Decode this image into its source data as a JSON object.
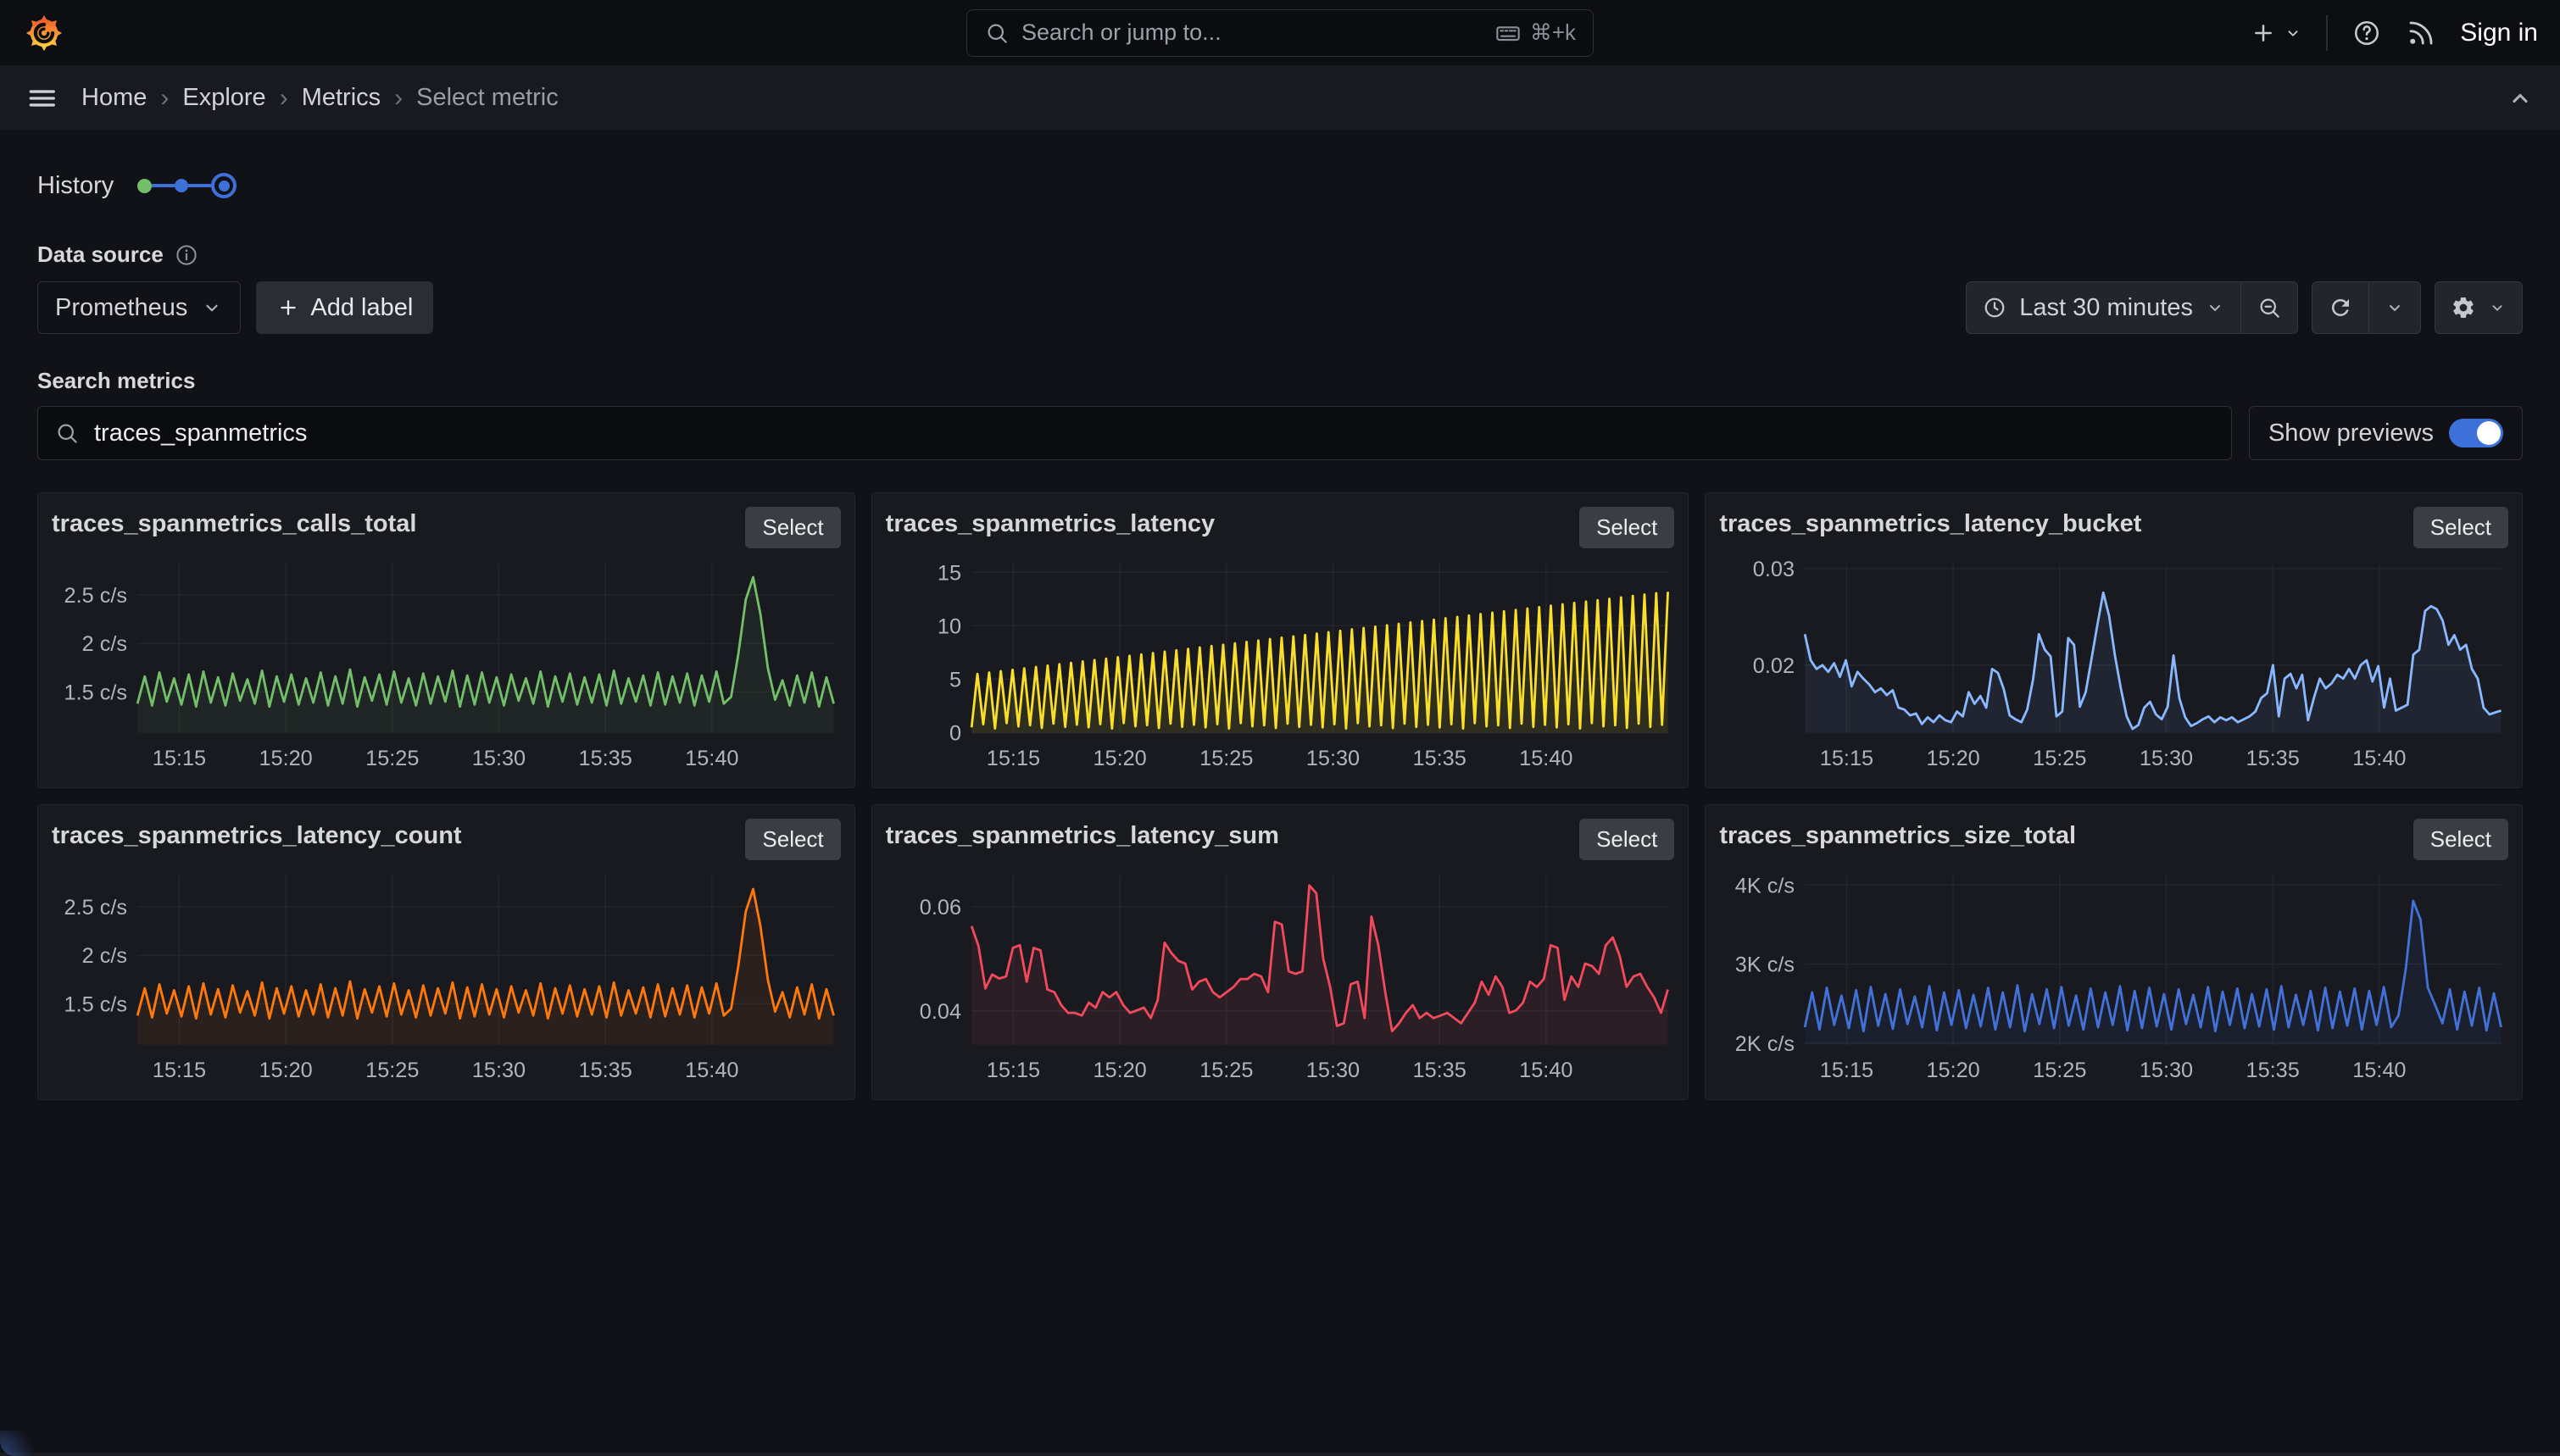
{
  "header": {
    "search": {
      "placeholder": "Search or jump to...",
      "shortcut": "⌘+k"
    },
    "sign_in": "Sign in"
  },
  "breadcrumb": {
    "separator": "›",
    "items": [
      "Home",
      "Explore",
      "Metrics",
      "Select metric"
    ]
  },
  "history": {
    "label": "History"
  },
  "datasource": {
    "label": "Data source",
    "value": "Prometheus",
    "add_label": "Add label"
  },
  "toolbar": {
    "time_label": "Last 30 minutes"
  },
  "search_metrics": {
    "label": "Search metrics",
    "value": "traces_spanmetrics",
    "show_previews": "Show previews"
  },
  "colors": {
    "accent": "#3d71d9",
    "toggle_on": "#3d71d9"
  },
  "time_axis": {
    "labels": [
      "15:15",
      "15:20",
      "15:25",
      "15:30",
      "15:35",
      "15:40"
    ],
    "fractions": [
      0.06,
      0.213,
      0.366,
      0.519,
      0.672,
      0.825
    ]
  },
  "panels": [
    {
      "title": "traces_spanmetrics_calls_total",
      "select_label": "Select",
      "chart": {
        "type": "line",
        "color": "#73bf69",
        "fill_opacity": 0.08,
        "ylim": [
          1.08,
          2.82
        ],
        "yticks": [
          {
            "v": 2.5,
            "label": "2.5 c/s"
          },
          {
            "v": 2.0,
            "label": "2 c/s"
          },
          {
            "v": 1.5,
            "label": "1.5 c/s"
          }
        ],
        "values": [
          1.38,
          1.66,
          1.36,
          1.7,
          1.4,
          1.64,
          1.37,
          1.68,
          1.35,
          1.71,
          1.39,
          1.65,
          1.36,
          1.69,
          1.41,
          1.63,
          1.38,
          1.72,
          1.35,
          1.66,
          1.4,
          1.68,
          1.37,
          1.64,
          1.39,
          1.7,
          1.36,
          1.66,
          1.38,
          1.73,
          1.35,
          1.65,
          1.41,
          1.68,
          1.37,
          1.71,
          1.39,
          1.64,
          1.36,
          1.69,
          1.38,
          1.66,
          1.4,
          1.72,
          1.35,
          1.67,
          1.37,
          1.7,
          1.39,
          1.65,
          1.36,
          1.68,
          1.41,
          1.64,
          1.38,
          1.71,
          1.35,
          1.66,
          1.4,
          1.69,
          1.37,
          1.65,
          1.39,
          1.68,
          1.36,
          1.72,
          1.38,
          1.64,
          1.4,
          1.67,
          1.36,
          1.7,
          1.37,
          1.66,
          1.39,
          1.69,
          1.36,
          1.67,
          1.4,
          1.71,
          1.38,
          1.45,
          1.9,
          2.45,
          2.68,
          2.3,
          1.75,
          1.42,
          1.62,
          1.36,
          1.67,
          1.39,
          1.7,
          1.35,
          1.65,
          1.38
        ]
      }
    },
    {
      "title": "traces_spanmetrics_latency",
      "select_label": "Select",
      "chart": {
        "type": "line",
        "color": "#fade2a",
        "fill_opacity": 0.1,
        "ylim": [
          0,
          15.8
        ],
        "yticks": [
          {
            "v": 15,
            "label": "15"
          },
          {
            "v": 10,
            "label": "10"
          },
          {
            "v": 5,
            "label": "5"
          },
          {
            "v": 0,
            "label": "0"
          }
        ],
        "values": [
          0.5,
          5.5,
          0.8,
          5.63,
          0.4,
          5.76,
          0.9,
          5.89,
          0.6,
          6.02,
          0.7,
          6.15,
          0.45,
          6.28,
          0.85,
          6.41,
          0.55,
          6.54,
          0.75,
          6.67,
          0.5,
          6.8,
          0.8,
          6.93,
          0.4,
          7.06,
          0.9,
          7.19,
          0.6,
          7.32,
          0.7,
          7.45,
          0.45,
          7.58,
          0.85,
          7.71,
          0.55,
          7.84,
          0.75,
          7.97,
          0.5,
          8.1,
          0.8,
          8.23,
          0.4,
          8.36,
          0.9,
          8.49,
          0.6,
          8.62,
          0.7,
          8.75,
          0.45,
          8.88,
          0.85,
          9.01,
          0.55,
          9.14,
          0.75,
          9.27,
          0.5,
          9.4,
          0.8,
          9.53,
          0.4,
          9.66,
          0.9,
          9.79,
          0.6,
          9.92,
          0.7,
          10.05,
          0.45,
          10.18,
          0.85,
          10.31,
          0.55,
          10.44,
          0.75,
          10.57,
          0.5,
          10.7,
          0.8,
          10.83,
          0.4,
          10.96,
          0.9,
          11.09,
          0.6,
          11.22,
          0.7,
          11.35,
          0.45,
          11.48,
          0.85,
          11.61,
          0.55,
          11.74,
          0.75,
          11.87,
          0.5,
          12.0,
          0.8,
          12.13,
          0.4,
          12.26,
          0.9,
          12.39,
          0.6,
          12.52,
          0.7,
          12.65,
          0.45,
          12.78,
          0.85,
          12.91,
          0.55,
          13.04,
          0.75,
          13.17
        ]
      }
    },
    {
      "title": "traces_spanmetrics_latency_bucket",
      "select_label": "Select",
      "chart": {
        "type": "line",
        "color": "#8ab8ff",
        "fill_opacity": 0.08,
        "ylim": [
          0.013,
          0.0305
        ],
        "yticks": [
          {
            "v": 0.03,
            "label": "0.03"
          },
          {
            "v": 0.02,
            "label": "0.02"
          }
        ],
        "values": [
          0.0232,
          0.0205,
          0.0196,
          0.02,
          0.0193,
          0.0202,
          0.0188,
          0.0205,
          0.0178,
          0.0193,
          0.0186,
          0.018,
          0.0172,
          0.0176,
          0.0169,
          0.0174,
          0.0156,
          0.0154,
          0.0148,
          0.015,
          0.0139,
          0.0146,
          0.0141,
          0.0148,
          0.0143,
          0.0141,
          0.0152,
          0.0147,
          0.0172,
          0.016,
          0.0168,
          0.0156,
          0.0196,
          0.0192,
          0.0175,
          0.0148,
          0.0144,
          0.0141,
          0.0154,
          0.0185,
          0.0232,
          0.0216,
          0.0209,
          0.0147,
          0.0152,
          0.0228,
          0.0221,
          0.0157,
          0.0172,
          0.0207,
          0.0242,
          0.0275,
          0.0251,
          0.021,
          0.0176,
          0.0147,
          0.0134,
          0.0138,
          0.0156,
          0.0162,
          0.0149,
          0.0144,
          0.0157,
          0.021,
          0.0166,
          0.0146,
          0.0137,
          0.014,
          0.0144,
          0.0147,
          0.0141,
          0.0146,
          0.0143,
          0.0146,
          0.0141,
          0.0144,
          0.0147,
          0.0152,
          0.0166,
          0.0171,
          0.02,
          0.0147,
          0.0186,
          0.0191,
          0.0176,
          0.019,
          0.0143,
          0.0166,
          0.0186,
          0.0176,
          0.0181,
          0.019,
          0.0186,
          0.0196,
          0.0186,
          0.02,
          0.0205,
          0.0183,
          0.0199,
          0.0156,
          0.0186,
          0.0153,
          0.0156,
          0.0159,
          0.0211,
          0.0216,
          0.0256,
          0.0261,
          0.0258,
          0.0246,
          0.0221,
          0.0231,
          0.0216,
          0.0221,
          0.0196,
          0.0186,
          0.0156,
          0.0149,
          0.0151,
          0.0153
        ]
      }
    },
    {
      "title": "traces_spanmetrics_latency_count",
      "select_label": "Select",
      "chart": {
        "type": "line",
        "color": "#ff780a",
        "fill_opacity": 0.08,
        "ylim": [
          1.08,
          2.82
        ],
        "yticks": [
          {
            "v": 2.5,
            "label": "2.5 c/s"
          },
          {
            "v": 2.0,
            "label": "2 c/s"
          },
          {
            "v": 1.5,
            "label": "1.5 c/s"
          }
        ],
        "values": [
          1.38,
          1.66,
          1.36,
          1.7,
          1.4,
          1.64,
          1.37,
          1.68,
          1.35,
          1.71,
          1.39,
          1.65,
          1.36,
          1.69,
          1.41,
          1.63,
          1.38,
          1.72,
          1.35,
          1.66,
          1.4,
          1.68,
          1.37,
          1.64,
          1.39,
          1.7,
          1.36,
          1.66,
          1.38,
          1.73,
          1.35,
          1.65,
          1.41,
          1.68,
          1.37,
          1.71,
          1.39,
          1.64,
          1.36,
          1.69,
          1.38,
          1.66,
          1.4,
          1.72,
          1.35,
          1.67,
          1.37,
          1.7,
          1.39,
          1.65,
          1.36,
          1.68,
          1.41,
          1.64,
          1.38,
          1.71,
          1.35,
          1.66,
          1.4,
          1.69,
          1.37,
          1.65,
          1.39,
          1.68,
          1.36,
          1.72,
          1.38,
          1.64,
          1.4,
          1.67,
          1.36,
          1.7,
          1.37,
          1.66,
          1.39,
          1.69,
          1.36,
          1.67,
          1.4,
          1.71,
          1.38,
          1.45,
          1.9,
          2.45,
          2.68,
          2.3,
          1.75,
          1.42,
          1.62,
          1.36,
          1.67,
          1.39,
          1.7,
          1.35,
          1.65,
          1.38
        ]
      }
    },
    {
      "title": "traces_spanmetrics_latency_sum",
      "select_label": "Select",
      "chart": {
        "type": "line",
        "color": "#f2495c",
        "fill_opacity": 0.09,
        "ylim": [
          0.0335,
          0.066
        ],
        "yticks": [
          {
            "v": 0.06,
            "label": "0.06"
          },
          {
            "v": 0.04,
            "label": "0.04"
          }
        ],
        "values": [
          0.0563,
          0.0525,
          0.0443,
          0.047,
          0.0462,
          0.0466,
          0.0521,
          0.0526,
          0.0456,
          0.0521,
          0.0516,
          0.0441,
          0.0436,
          0.0411,
          0.0396,
          0.0396,
          0.0391,
          0.0416,
          0.0406,
          0.0436,
          0.0426,
          0.0436,
          0.0411,
          0.0396,
          0.0401,
          0.0406,
          0.0386,
          0.0421,
          0.0531,
          0.0511,
          0.0496,
          0.0491,
          0.0441,
          0.0456,
          0.0461,
          0.0436,
          0.0426,
          0.0436,
          0.0446,
          0.0461,
          0.0461,
          0.0471,
          0.0466,
          0.0436,
          0.0571,
          0.0566,
          0.0476,
          0.0471,
          0.0476,
          0.0641,
          0.0626,
          0.0501,
          0.0446,
          0.0371,
          0.0376,
          0.0451,
          0.0456,
          0.0386,
          0.0581,
          0.0526,
          0.0436,
          0.0361,
          0.0376,
          0.0396,
          0.0411,
          0.0386,
          0.0396,
          0.0386,
          0.0391,
          0.0396,
          0.0386,
          0.0376,
          0.0396,
          0.0416,
          0.0456,
          0.0431,
          0.0466,
          0.0446,
          0.0396,
          0.0401,
          0.0416,
          0.0456,
          0.0446,
          0.0461,
          0.0526,
          0.0521,
          0.0421,
          0.0466,
          0.0446,
          0.0491,
          0.0486,
          0.0471,
          0.0526,
          0.0541,
          0.0506,
          0.0446,
          0.0466,
          0.0471,
          0.0446,
          0.0426,
          0.0396,
          0.0441
        ]
      }
    },
    {
      "title": "traces_spanmetrics_size_total",
      "select_label": "Select",
      "chart": {
        "type": "line",
        "color": "#4272d9",
        "fill_opacity": 0.08,
        "ylim": [
          1980,
          4120
        ],
        "yticks": [
          {
            "v": 4000,
            "label": "4K c/s"
          },
          {
            "v": 3000,
            "label": "3K c/s"
          },
          {
            "v": 2000,
            "label": "2K c/s"
          }
        ],
        "values": [
          2200,
          2640,
          2170,
          2700,
          2230,
          2600,
          2190,
          2670,
          2150,
          2710,
          2220,
          2620,
          2180,
          2680,
          2240,
          2590,
          2200,
          2720,
          2160,
          2640,
          2230,
          2670,
          2190,
          2610,
          2210,
          2700,
          2170,
          2640,
          2200,
          2730,
          2150,
          2620,
          2240,
          2680,
          2190,
          2710,
          2220,
          2600,
          2170,
          2690,
          2200,
          2640,
          2230,
          2720,
          2160,
          2660,
          2190,
          2700,
          2210,
          2620,
          2170,
          2680,
          2240,
          2610,
          2200,
          2710,
          2150,
          2650,
          2230,
          2690,
          2190,
          2620,
          2210,
          2680,
          2170,
          2720,
          2200,
          2610,
          2230,
          2660,
          2160,
          2700,
          2190,
          2650,
          2220,
          2690,
          2170,
          2660,
          2230,
          2710,
          2200,
          2350,
          2950,
          3800,
          3560,
          2700,
          2480,
          2250,
          2680,
          2170,
          2650,
          2220,
          2700,
          2160,
          2630,
          2200
        ]
      }
    }
  ]
}
